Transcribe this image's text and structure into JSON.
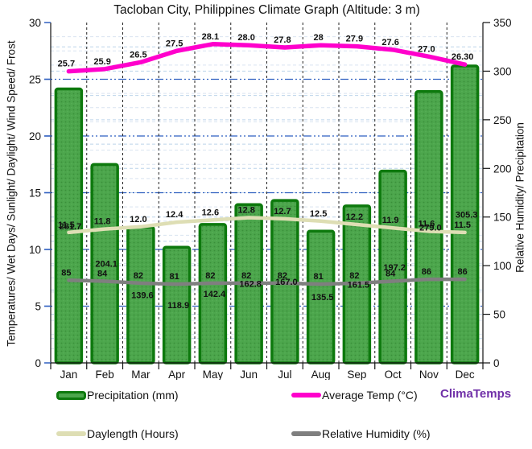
{
  "title": "Tacloban City, Philippines Climate Graph (Altitude: 3 m)",
  "watermark": "ClimaTemps",
  "axes": {
    "left_title": "Temperatures/ Wet Days/ Sunlight/ Daylight/ Wind Speed/ Frost",
    "right_title": "Relative Humidity/ Precipitation",
    "left_ticks": [
      0,
      5,
      10,
      15,
      20,
      25,
      30
    ],
    "right_ticks": [
      0,
      50,
      100,
      150,
      200,
      250,
      300,
      350
    ],
    "left_ylim": [
      0,
      30
    ],
    "right_ylim": [
      0,
      350
    ]
  },
  "chart_data": {
    "type": "bar",
    "title": "Tacloban City, Philippines Climate Graph (Altitude: 3 m)",
    "categories": [
      "Jan",
      "Feb",
      "Mar",
      "Apr",
      "May",
      "Jun",
      "Jul",
      "Aug",
      "Sep",
      "Oct",
      "Nov",
      "Dec"
    ],
    "series": [
      {
        "name": "Precipitation (mm)",
        "type": "bar",
        "axis": "right",
        "fill": "#4CA64C",
        "edge": "#0D790D",
        "values": [
          281.7,
          204.1,
          139.6,
          118.9,
          142.4,
          162.8,
          167.0,
          135.5,
          161.5,
          197.2,
          279.0,
          305.3
        ],
        "labels": [
          "281.7",
          "204.1",
          "139.6",
          "118.9",
          "142.4",
          "162.8",
          "167.0",
          "135.5",
          "161.5",
          "197.2",
          "279.0",
          "305.3"
        ]
      },
      {
        "name": "Average Temp (°C)",
        "type": "line",
        "axis": "left",
        "color": "#FF00CC",
        "width": 5.5,
        "values": [
          25.7,
          25.9,
          26.5,
          27.5,
          28.1,
          28.0,
          27.8,
          28,
          27.9,
          27.6,
          27.0,
          26.3
        ],
        "labels": [
          "25.7",
          "25.9",
          "26.5",
          "27.5",
          "28.1",
          "28.0",
          "27.8",
          "28",
          "27.9",
          "27.6",
          "27.0",
          "26.30"
        ]
      },
      {
        "name": "Daylength (Hours)",
        "type": "line",
        "axis": "left",
        "color": "#DEDEB4",
        "width": 4.5,
        "values": [
          11.5,
          11.8,
          12.0,
          12.4,
          12.6,
          12.8,
          12.7,
          12.5,
          12.2,
          11.9,
          11.6,
          11.5
        ],
        "labels": [
          "11.5",
          "11.8",
          "12.0",
          "12.4",
          "12.6",
          "12.8",
          "12.7",
          "12.5",
          "12.2",
          "11.9",
          "11.6",
          "11.5"
        ]
      },
      {
        "name": "Relative Humidity (%)",
        "type": "line",
        "axis": "right",
        "color": "#7F7F7F",
        "width": 4.5,
        "values": [
          85,
          84,
          82,
          81,
          82,
          82,
          82,
          81,
          82,
          84,
          86,
          86
        ],
        "labels": [
          "85",
          "84",
          "82",
          "81",
          "82",
          "82",
          "82",
          "81",
          "82",
          "84",
          "86",
          "86"
        ]
      }
    ],
    "grid": "on",
    "legend_position": "bottom"
  },
  "legend": {
    "precipitation": "Precipitation (mm)",
    "avg_temp": "Average Temp (°C)",
    "daylength": "Daylength (Hours)",
    "humidity": "Relative Humidity (%)"
  },
  "colors": {
    "bar_fill": "#4CA64C",
    "bar_edge": "#0D790D",
    "bar_dot": "#3A8F3A",
    "temp_line": "#FF00CC",
    "daylength_line": "#DEDEB4",
    "humidity_line": "#7F7F7F",
    "major_grid": "#2F5FC0",
    "minor_grid": "#BCD4EA",
    "minor_grid2": "#D9E4F0",
    "watermark": "#7030A8"
  }
}
